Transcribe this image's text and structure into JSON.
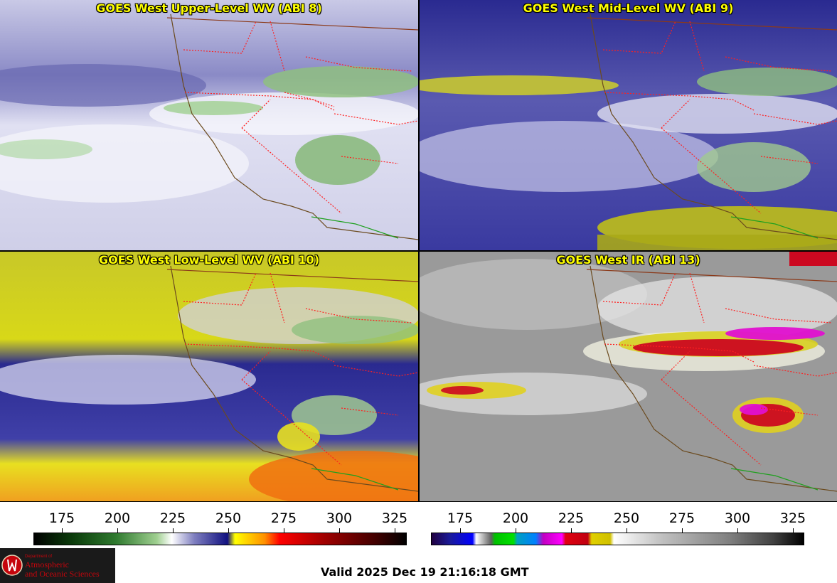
{
  "panels": {
    "upper": {
      "title": "GOES West Upper-Level WV (ABI 8)"
    },
    "mid": {
      "title": "GOES West Mid-Level WV (ABI 9)"
    },
    "low": {
      "title": "GOES West Low-Level WV (ABI 10)"
    },
    "ir": {
      "title": "GOES West IR (ABI 13)"
    }
  },
  "colorbar_wv": {
    "ticks": [
      "175",
      "200",
      "225",
      "250",
      "275",
      "300",
      "325"
    ]
  },
  "colorbar_ir": {
    "ticks": [
      "175",
      "200",
      "225",
      "250",
      "275",
      "300",
      "325"
    ]
  },
  "logo": {
    "department": "Department of",
    "line1": "Atmospheric",
    "line2": "and Oceanic Sciences"
  },
  "valid_time": "Valid 2025 Dec 19 21:16:18 GMT",
  "colors": {
    "state_border": "#ff2020",
    "country_border": "#8b3a1a",
    "coastline": "#6b4a1e",
    "mexico_border": "#1fa01f",
    "title_text": "#ffff00"
  }
}
